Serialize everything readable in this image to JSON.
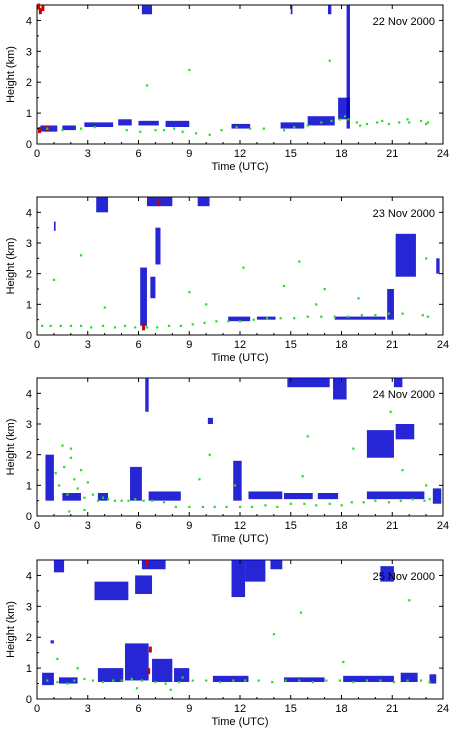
{
  "chart_data": [
    {
      "type": "scatter",
      "title": "22 Nov 2000",
      "xlabel": "Time (UTC)",
      "ylabel": "Height (km)",
      "xlim": [
        0,
        24
      ],
      "ylim": [
        0,
        4.5
      ],
      "xticks": [
        "0",
        "3",
        "6",
        "9",
        "12",
        "15",
        "18",
        "21",
        "24"
      ],
      "yticks": [
        "0",
        "1",
        "2",
        "3",
        "4"
      ],
      "colors": {
        "cloud_layer": "#0000cc",
        "boundary_layer": "#22dd22",
        "precipitation": "#cc0000"
      },
      "green_points": [
        [
          0.6,
          0.5
        ],
        [
          1.5,
          0.45
        ],
        [
          2.6,
          0.5
        ],
        [
          3.4,
          0.55
        ],
        [
          5.3,
          0.45
        ],
        [
          6.1,
          0.4
        ],
        [
          7.5,
          0.45
        ],
        [
          8.1,
          0.5
        ],
        [
          9.4,
          0.35
        ],
        [
          10.2,
          0.3
        ],
        [
          11.8,
          0.55
        ],
        [
          13.4,
          0.5
        ],
        [
          15.2,
          0.55
        ],
        [
          16.0,
          0.6
        ],
        [
          16.8,
          0.7
        ],
        [
          17.4,
          0.75
        ],
        [
          17.9,
          0.8
        ],
        [
          18.4,
          0.8
        ],
        [
          18.9,
          0.7
        ],
        [
          19.5,
          0.65
        ],
        [
          20.1,
          0.7
        ],
        [
          20.8,
          0.65
        ],
        [
          21.4,
          0.7
        ],
        [
          22.0,
          0.7
        ],
        [
          22.7,
          0.75
        ],
        [
          23.1,
          0.7
        ],
        [
          6.5,
          1.9
        ],
        [
          9.0,
          2.4
        ],
        [
          17.3,
          2.7
        ],
        [
          18.2,
          0.9
        ],
        [
          7.0,
          0.45
        ],
        [
          8.6,
          0.4
        ],
        [
          10.9,
          0.45
        ],
        [
          12.6,
          0.5
        ],
        [
          14.6,
          0.45
        ],
        [
          19.1,
          0.6
        ],
        [
          20.4,
          0.75
        ],
        [
          21.9,
          0.8
        ],
        [
          23.0,
          0.65
        ]
      ],
      "blue_segments": [
        [
          0.2,
          0.4,
          1.2,
          0.6
        ],
        [
          1.5,
          0.45,
          2.3,
          0.6
        ],
        [
          2.8,
          0.55,
          4.5,
          0.7
        ],
        [
          4.8,
          0.6,
          5.6,
          0.8
        ],
        [
          6.0,
          0.6,
          7.2,
          0.75
        ],
        [
          7.6,
          0.55,
          9.0,
          0.75
        ],
        [
          11.5,
          0.5,
          12.6,
          0.65
        ],
        [
          14.4,
          0.5,
          15.8,
          0.7
        ],
        [
          16.0,
          0.6,
          17.6,
          0.9
        ],
        [
          17.8,
          0.8,
          18.5,
          1.5
        ],
        [
          6.2,
          4.2,
          6.8,
          4.5
        ],
        [
          15.0,
          4.2,
          15.1,
          4.5
        ],
        [
          17.2,
          4.2,
          17.4,
          4.5
        ],
        [
          18.3,
          0.5,
          18.5,
          4.5
        ]
      ],
      "red_points": [
        [
          0.1,
          4.45
        ],
        [
          0.2,
          4.3
        ],
        [
          0.35,
          4.4
        ],
        [
          0.15,
          0.45
        ],
        [
          0.6,
          0.5
        ]
      ]
    },
    {
      "type": "scatter",
      "title": "23 Nov 2000",
      "xlabel": "Time (UTC)",
      "ylabel": "Height (km)",
      "xlim": [
        0,
        24
      ],
      "ylim": [
        0,
        4.5
      ],
      "xticks": [
        "0",
        "3",
        "6",
        "9",
        "12",
        "15",
        "18",
        "21",
        "24"
      ],
      "yticks": [
        "0",
        "1",
        "2",
        "3",
        "4"
      ],
      "colors": {
        "cloud_layer": "#0000cc",
        "boundary_layer": "#22dd22",
        "precipitation": "#cc0000"
      },
      "green_points": [
        [
          0.3,
          0.3
        ],
        [
          0.8,
          0.3
        ],
        [
          1.4,
          0.3
        ],
        [
          2.0,
          0.3
        ],
        [
          2.6,
          0.3
        ],
        [
          3.2,
          0.25
        ],
        [
          3.9,
          0.3
        ],
        [
          4.6,
          0.25
        ],
        [
          5.2,
          0.3
        ],
        [
          5.8,
          0.25
        ],
        [
          6.5,
          0.25
        ],
        [
          7.1,
          0.25
        ],
        [
          7.8,
          0.3
        ],
        [
          8.5,
          0.3
        ],
        [
          9.2,
          0.35
        ],
        [
          9.9,
          0.4
        ],
        [
          10.6,
          0.45
        ],
        [
          11.3,
          0.45
        ],
        [
          12.0,
          0.45
        ],
        [
          12.8,
          0.5
        ],
        [
          13.6,
          0.55
        ],
        [
          14.4,
          0.55
        ],
        [
          15.2,
          0.55
        ],
        [
          16.0,
          0.6
        ],
        [
          16.8,
          0.6
        ],
        [
          17.6,
          0.6
        ],
        [
          18.4,
          0.6
        ],
        [
          19.2,
          0.65
        ],
        [
          20.0,
          0.65
        ],
        [
          20.8,
          0.7
        ],
        [
          21.6,
          0.7
        ],
        [
          22.8,
          0.65
        ],
        [
          23.1,
          0.6
        ],
        [
          1.0,
          1.8
        ],
        [
          2.6,
          2.6
        ],
        [
          4.0,
          0.9
        ],
        [
          9.0,
          1.4
        ],
        [
          10.0,
          1.0
        ],
        [
          12.2,
          2.2
        ],
        [
          14.6,
          1.6
        ],
        [
          16.5,
          1.0
        ],
        [
          17.0,
          1.5
        ],
        [
          19.0,
          1.2
        ],
        [
          23.0,
          2.5
        ],
        [
          15.5,
          2.4
        ]
      ],
      "blue_segments": [
        [
          3.5,
          4.0,
          4.2,
          4.5
        ],
        [
          1.0,
          3.4,
          1.1,
          3.7
        ],
        [
          7.0,
          2.3,
          7.3,
          3.5
        ],
        [
          6.1,
          0.3,
          6.5,
          2.2
        ],
        [
          6.7,
          1.2,
          7.0,
          1.9
        ],
        [
          11.3,
          0.45,
          12.6,
          0.6
        ],
        [
          13.0,
          0.5,
          14.1,
          0.6
        ],
        [
          17.6,
          0.5,
          20.6,
          0.6
        ],
        [
          20.7,
          0.5,
          21.1,
          1.5
        ],
        [
          21.2,
          1.9,
          22.4,
          3.3
        ],
        [
          23.6,
          2.0,
          23.8,
          2.5
        ],
        [
          6.5,
          4.2,
          8.0,
          4.5
        ],
        [
          9.5,
          4.2,
          10.2,
          4.5
        ]
      ],
      "red_points": [
        [
          6.3,
          0.25
        ],
        [
          7.2,
          4.3
        ]
      ]
    },
    {
      "type": "scatter",
      "title": "24 Nov 2000",
      "xlabel": "Time (UTC)",
      "ylabel": "Height (km)",
      "xlim": [
        0,
        24
      ],
      "ylim": [
        0,
        4.5
      ],
      "xticks": [
        "0",
        "3",
        "6",
        "9",
        "12",
        "15",
        "18",
        "21",
        "24"
      ],
      "yticks": [
        "0",
        "1",
        "2",
        "3",
        "4"
      ],
      "colors": {
        "cloud_layer": "#0000cc",
        "boundary_layer": "#22dd22",
        "precipitation": "#cc0000"
      },
      "green_points": [
        [
          1.1,
          1.4
        ],
        [
          1.3,
          1.0
        ],
        [
          1.6,
          1.6
        ],
        [
          1.8,
          0.7
        ],
        [
          2.0,
          2.2
        ],
        [
          2.2,
          1.2
        ],
        [
          2.4,
          0.9
        ],
        [
          2.6,
          1.5
        ],
        [
          2.8,
          0.6
        ],
        [
          3.0,
          1.1
        ],
        [
          3.3,
          0.7
        ],
        [
          3.6,
          0.5
        ],
        [
          3.9,
          0.6
        ],
        [
          4.2,
          0.55
        ],
        [
          4.6,
          0.5
        ],
        [
          5.0,
          0.5
        ],
        [
          5.4,
          0.5
        ],
        [
          5.8,
          0.55
        ],
        [
          6.3,
          0.5
        ],
        [
          6.8,
          0.5
        ],
        [
          7.5,
          0.45
        ],
        [
          8.2,
          0.3
        ],
        [
          9.0,
          0.3
        ],
        [
          9.8,
          0.3
        ],
        [
          10.5,
          0.3
        ],
        [
          11.2,
          0.3
        ],
        [
          12.0,
          0.3
        ],
        [
          12.7,
          0.3
        ],
        [
          13.5,
          0.35
        ],
        [
          14.2,
          0.3
        ],
        [
          15.0,
          0.4
        ],
        [
          15.8,
          0.4
        ],
        [
          16.5,
          0.35
        ],
        [
          17.3,
          0.4
        ],
        [
          18.0,
          0.35
        ],
        [
          18.6,
          0.45
        ],
        [
          19.3,
          0.45
        ],
        [
          20.0,
          0.5
        ],
        [
          20.8,
          0.45
        ],
        [
          21.5,
          0.5
        ],
        [
          22.2,
          0.55
        ],
        [
          22.9,
          0.5
        ],
        [
          23.2,
          0.55
        ],
        [
          1.5,
          2.3
        ],
        [
          2.0,
          1.9
        ],
        [
          9.6,
          1.2
        ],
        [
          10.2,
          2.0
        ],
        [
          11.7,
          1.0
        ],
        [
          15.7,
          1.3
        ],
        [
          18.7,
          2.2
        ],
        [
          16.0,
          2.6
        ],
        [
          20.9,
          3.4
        ],
        [
          23.0,
          1.0
        ],
        [
          21.6,
          1.5
        ],
        [
          1.9,
          0.15
        ],
        [
          2.8,
          0.2
        ]
      ],
      "blue_segments": [
        [
          0.5,
          0.5,
          1.0,
          2.0
        ],
        [
          1.5,
          0.5,
          2.6,
          0.75
        ],
        [
          3.6,
          0.5,
          4.2,
          0.75
        ],
        [
          5.5,
          0.5,
          6.2,
          1.6
        ],
        [
          6.6,
          0.5,
          8.5,
          0.8
        ],
        [
          11.6,
          0.5,
          12.1,
          1.8
        ],
        [
          12.5,
          0.55,
          14.5,
          0.8
        ],
        [
          14.6,
          0.55,
          16.3,
          0.75
        ],
        [
          16.6,
          0.55,
          17.8,
          0.75
        ],
        [
          19.5,
          0.55,
          22.9,
          0.8
        ],
        [
          23.4,
          0.4,
          23.9,
          0.9
        ],
        [
          19.5,
          1.9,
          21.1,
          2.8
        ],
        [
          21.2,
          2.5,
          22.3,
          3.0
        ],
        [
          6.4,
          3.4,
          6.6,
          4.5
        ],
        [
          14.8,
          4.2,
          17.3,
          4.5
        ],
        [
          17.5,
          3.8,
          18.3,
          4.5
        ],
        [
          21.1,
          4.2,
          21.6,
          4.5
        ],
        [
          10.1,
          3.0,
          10.4,
          3.2
        ]
      ],
      "red_points": []
    },
    {
      "type": "scatter",
      "title": "25 Nov 2000",
      "xlabel": "Time (UTC)",
      "ylabel": "Height (km)",
      "xlim": [
        0,
        24
      ],
      "ylim": [
        0,
        4.5
      ],
      "xticks": [
        "0",
        "3",
        "6",
        "9",
        "12",
        "15",
        "18",
        "21",
        "24"
      ],
      "yticks": [
        "0",
        "1",
        "2",
        "3",
        "4"
      ],
      "colors": {
        "cloud_layer": "#0000cc",
        "boundary_layer": "#22dd22",
        "precipitation": "#cc0000"
      },
      "green_points": [
        [
          0.6,
          0.6
        ],
        [
          1.2,
          0.55
        ],
        [
          1.8,
          0.5
        ],
        [
          2.2,
          0.6
        ],
        [
          2.8,
          0.65
        ],
        [
          3.3,
          0.6
        ],
        [
          3.9,
          0.55
        ],
        [
          4.5,
          0.6
        ],
        [
          5.0,
          0.6
        ],
        [
          5.6,
          0.65
        ],
        [
          6.2,
          0.6
        ],
        [
          7.0,
          0.55
        ],
        [
          7.6,
          0.5
        ],
        [
          8.4,
          0.55
        ],
        [
          9.2,
          0.6
        ],
        [
          10.0,
          0.6
        ],
        [
          10.8,
          0.55
        ],
        [
          11.6,
          0.6
        ],
        [
          12.3,
          0.6
        ],
        [
          13.1,
          0.6
        ],
        [
          13.9,
          0.55
        ],
        [
          14.7,
          0.6
        ],
        [
          15.5,
          0.6
        ],
        [
          16.3,
          0.55
        ],
        [
          17.1,
          0.6
        ],
        [
          17.9,
          0.6
        ],
        [
          18.7,
          0.55
        ],
        [
          19.5,
          0.6
        ],
        [
          20.3,
          0.6
        ],
        [
          21.1,
          0.55
        ],
        [
          21.9,
          0.6
        ],
        [
          22.7,
          0.6
        ],
        [
          23.2,
          0.55
        ],
        [
          1.2,
          1.3
        ],
        [
          5.9,
          0.35
        ],
        [
          7.9,
          0.3
        ],
        [
          14.0,
          2.1
        ],
        [
          15.6,
          2.8
        ],
        [
          18.1,
          1.2
        ],
        [
          22.0,
          3.2
        ],
        [
          2.4,
          1.0
        ],
        [
          8.6,
          0.7
        ]
      ],
      "blue_segments": [
        [
          0.3,
          0.45,
          1.0,
          0.85
        ],
        [
          1.3,
          0.5,
          2.4,
          0.7
        ],
        [
          3.6,
          0.55,
          5.1,
          1.0
        ],
        [
          5.2,
          0.6,
          6.6,
          1.8
        ],
        [
          6.8,
          0.55,
          8.0,
          1.3
        ],
        [
          8.1,
          0.55,
          9.0,
          1.0
        ],
        [
          10.4,
          0.55,
          12.5,
          0.75
        ],
        [
          14.6,
          0.55,
          17.0,
          0.7
        ],
        [
          18.1,
          0.55,
          21.1,
          0.75
        ],
        [
          21.5,
          0.55,
          22.5,
          0.85
        ],
        [
          23.2,
          0.5,
          23.6,
          0.8
        ],
        [
          1.0,
          4.1,
          1.6,
          4.5
        ],
        [
          3.4,
          3.2,
          5.4,
          3.8
        ],
        [
          5.8,
          3.4,
          6.8,
          4.0
        ],
        [
          6.2,
          4.2,
          7.6,
          4.5
        ],
        [
          11.5,
          3.3,
          12.3,
          4.5
        ],
        [
          12.3,
          3.8,
          13.5,
          4.5
        ],
        [
          13.8,
          4.2,
          14.5,
          4.5
        ],
        [
          20.3,
          3.8,
          21.1,
          4.3
        ],
        [
          0.8,
          1.8,
          1.0,
          1.9
        ]
      ],
      "red_points": [
        [
          6.5,
          4.4
        ],
        [
          6.6,
          0.9
        ],
        [
          6.7,
          1.6
        ]
      ]
    }
  ]
}
